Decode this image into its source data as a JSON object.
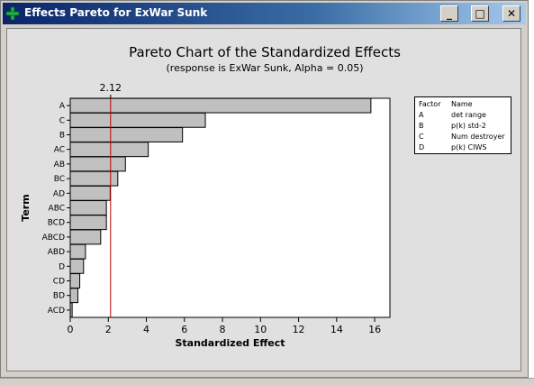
{
  "window": {
    "title": "Effects Pareto for ExWar Sunk",
    "controls": {
      "minimize": "_",
      "maximize": "□",
      "close": "✕"
    }
  },
  "chart_data": {
    "type": "bar",
    "orientation": "horizontal",
    "title": "Pareto Chart of the Standardized Effects",
    "subtitle": "(response is ExWar Sunk, Alpha = 0.05)",
    "xlabel": "Standardized Effect",
    "ylabel": "Term",
    "xlim": [
      0,
      16.8
    ],
    "xticks": [
      0,
      2,
      4,
      6,
      8,
      10,
      12,
      14,
      16
    ],
    "categories": [
      "A",
      "C",
      "B",
      "AC",
      "AB",
      "BC",
      "AD",
      "ABC",
      "BCD",
      "ABCD",
      "ABD",
      "D",
      "CD",
      "BD",
      "ACD"
    ],
    "values": [
      15.8,
      7.1,
      5.9,
      4.1,
      2.9,
      2.5,
      2.1,
      1.9,
      1.9,
      1.6,
      0.8,
      0.7,
      0.5,
      0.4,
      0.1
    ],
    "reference_line": {
      "value": 2.12,
      "label": "2.12",
      "color": "#c00000"
    },
    "bar_color": "#c0c0c0",
    "legend": {
      "position": "top-right",
      "header": {
        "factor": "Factor",
        "name": "Name"
      },
      "entries": [
        {
          "factor": "A",
          "name": "det range"
        },
        {
          "factor": "B",
          "name": "p(k) std-2"
        },
        {
          "factor": "C",
          "name": "Num destroyer"
        },
        {
          "factor": "D",
          "name": "p(k) CIWS"
        }
      ]
    }
  }
}
